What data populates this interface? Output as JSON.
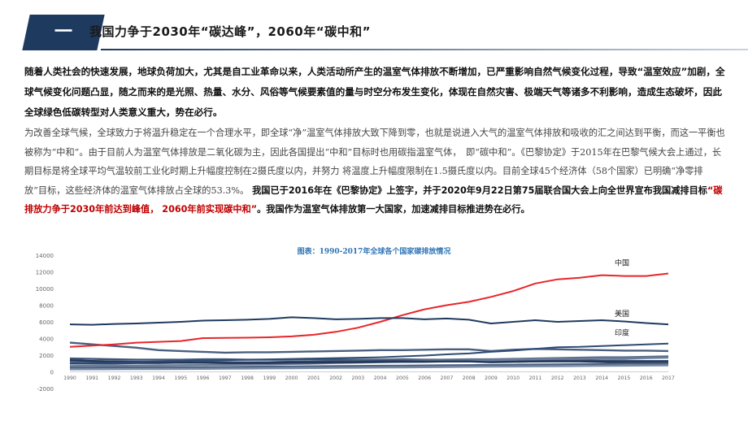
{
  "header": {
    "badge": "一",
    "title": "我国力争于2030年“碳达峰”，2060年“碳中和”"
  },
  "intro": "随着人类社会的快速发展，地球负荷加大，尤其是自工业革命以来，人类活动所产生的温室气体排放不断增加，已严重影响自然气候变化过程，导致“温室效应”加剧，全球气候变化问题凸显，随之而来的是光照、热量、水分、风俗等气候要素值的量与时空分布发生变化，体现在自然灾害、极端天气等诸多不利影响，造成生态破坏，因此全球绿色低碳转型对人类意义重大，势在必行。",
  "body": {
    "part1": "为改善全球气候，全球致力于将温升稳定在一个合理水平，即全球“净”温室气体排放大致下降到零，也就是说进入大气的温室气体排放和吸收的汇之间达到平衡，而这一平衡也被称为“中和”。由于目前人为温室气体排放是二氧化碳为主，因此各国提出“中和”目标时也用碳指温室气体，　即“碳中和”。《巴黎协定》于2015年在巴黎气候大会上通过，长期目标是将全球平均气温较前工业化时期上升幅度控制在2摄氏度以内，并努力 将温度上升幅度限制在1.5摄氏度以内。目前全球45个经济体（58个国家）已明确“净零排放”目标，这些经济体的温室气体排放占全球的53.3%。",
    "part2": " 我国已于2016年在《巴黎协定》上签字，并于2020年9月22日第75届联合国大会上向全世界宣布我国减排目标",
    "highlight": "“碳排放力争于2030年前达到峰值， 2060年前实现碳中和”",
    "part3": "。我国作为温室气体排放第一大国家，加速减排目标推进势在必行。"
  },
  "chart_data": {
    "type": "line",
    "title": "图表：1990-2017年全球各个国家碳排放情况",
    "x": [
      1990,
      1991,
      1992,
      1993,
      1994,
      1995,
      1996,
      1997,
      1998,
      1999,
      2000,
      2001,
      2002,
      2003,
      2004,
      2005,
      2006,
      2007,
      2008,
      2009,
      2010,
      2011,
      2012,
      2013,
      2014,
      2015,
      2016,
      2017
    ],
    "ylim": [
      -2000,
      14000
    ],
    "yticks": [
      -2000,
      0,
      2000,
      4000,
      6000,
      8000,
      10000,
      12000,
      14000
    ],
    "grid": false,
    "series": [
      {
        "name": "中国",
        "color": "#e8262a",
        "labeled": true,
        "values": [
          3000,
          3150,
          3300,
          3500,
          3600,
          3700,
          4050,
          4080,
          4100,
          4150,
          4250,
          4450,
          4800,
          5300,
          6000,
          6800,
          7500,
          8000,
          8400,
          9000,
          9700,
          10600,
          11100,
          11300,
          11600,
          11500,
          11500,
          11800
        ]
      },
      {
        "name": "美国",
        "color": "#1f3a5f",
        "labeled": true,
        "values": [
          5700,
          5650,
          5750,
          5800,
          5900,
          6000,
          6150,
          6200,
          6250,
          6350,
          6550,
          6450,
          6300,
          6350,
          6450,
          6450,
          6300,
          6400,
          6250,
          5800,
          6000,
          6200,
          6000,
          6100,
          6200,
          6050,
          5850,
          5700
        ]
      },
      {
        "name": "印度",
        "color": "#2e4a73",
        "labeled": true,
        "values": [
          1000,
          1050,
          1100,
          1200,
          1250,
          1300,
          1350,
          1400,
          1450,
          1500,
          1550,
          1600,
          1650,
          1700,
          1750,
          1850,
          1950,
          2100,
          2200,
          2400,
          2550,
          2750,
          2950,
          3000,
          3100,
          3200,
          3300,
          3400
        ]
      },
      {
        "name": "",
        "color": "#4a5f80",
        "labeled": false,
        "values": [
          3500,
          3300,
          3100,
          2900,
          2600,
          2500,
          2400,
          2300,
          2350,
          2350,
          2400,
          2450,
          2500,
          2550,
          2600,
          2600,
          2650,
          2700,
          2700,
          2500,
          2650,
          2750,
          2700,
          2650,
          2600,
          2550,
          2550,
          2500
        ]
      },
      {
        "name": "",
        "color": "#3f5577",
        "labeled": false,
        "values": [
          1600,
          1550,
          1500,
          1450,
          1450,
          1450,
          1500,
          1500,
          1450,
          1450,
          1450,
          1500,
          1450,
          1450,
          1450,
          1500,
          1450,
          1450,
          1450,
          1350,
          1400,
          1450,
          1400,
          1400,
          1350,
          1350,
          1300,
          1300
        ]
      },
      {
        "name": "",
        "color": "#5a6d8c",
        "labeled": false,
        "values": [
          1200,
          1150,
          1100,
          1100,
          1100,
          1100,
          1150,
          1150,
          1150,
          1150,
          1200,
          1250,
          1300,
          1350,
          1350,
          1400,
          1400,
          1450,
          1500,
          1500,
          1550,
          1600,
          1650,
          1700,
          1750,
          1750,
          1800,
          1850
        ]
      },
      {
        "name": "",
        "color": "#35496b",
        "labeled": false,
        "values": [
          1000,
          1000,
          1000,
          1050,
          1050,
          1100,
          1100,
          1150,
          1100,
          1150,
          1200,
          1200,
          1250,
          1250,
          1300,
          1300,
          1300,
          1250,
          1250,
          1200,
          1250,
          1250,
          1300,
          1300,
          1300,
          1250,
          1250,
          1250
        ]
      },
      {
        "name": "",
        "color": "#6b7d99",
        "labeled": false,
        "values": [
          700,
          720,
          740,
          760,
          780,
          800,
          820,
          850,
          870,
          900,
          950,
          1000,
          1050,
          1100,
          1150,
          1200,
          1250,
          1300,
          1350,
          1400,
          1450,
          1500,
          1550,
          1550,
          1600,
          1600,
          1650,
          1700
        ]
      },
      {
        "name": "",
        "color": "#22385a",
        "labeled": false,
        "values": [
          1400,
          1300,
          1250,
          1200,
          1150,
          1100,
          1100,
          1050,
          1050,
          1050,
          1100,
          1100,
          1150,
          1150,
          1200,
          1200,
          1200,
          1250,
          1250,
          1150,
          1200,
          1250,
          1250,
          1250,
          1200,
          1150,
          1150,
          1150
        ]
      },
      {
        "name": "",
        "color": "#506583",
        "labeled": false,
        "values": [
          500,
          510,
          520,
          530,
          540,
          550,
          560,
          580,
          600,
          620,
          640,
          660,
          680,
          700,
          720,
          740,
          760,
          780,
          800,
          820,
          850,
          880,
          900,
          920,
          950,
          970,
          990,
          1000
        ]
      },
      {
        "name": "",
        "color": "#7a8ba6",
        "labeled": false,
        "values": [
          300,
          310,
          320,
          330,
          340,
          350,
          360,
          380,
          400,
          420,
          440,
          460,
          480,
          500,
          520,
          540,
          560,
          580,
          600,
          620,
          640,
          660,
          680,
          700,
          720,
          740,
          760,
          780
        ]
      }
    ]
  }
}
